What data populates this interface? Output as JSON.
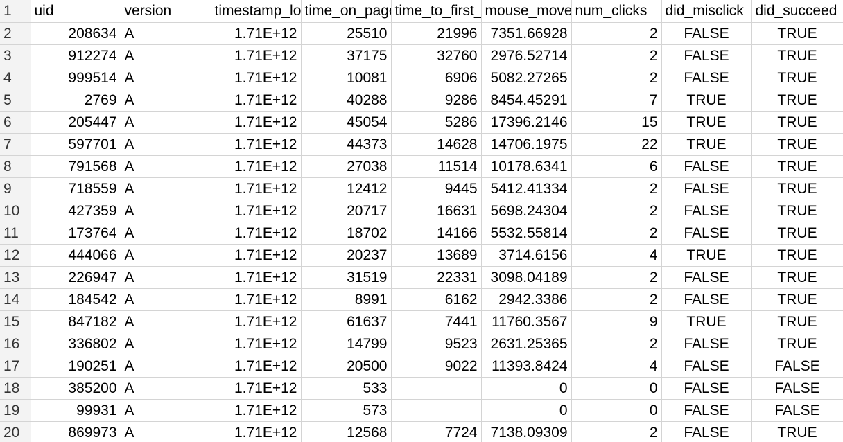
{
  "columns": [
    "uid",
    "version",
    "timestamp_lo",
    "time_on_page",
    "time_to_first_",
    "mouse_moves",
    "num_clicks",
    "did_misclick",
    "did_succeed"
  ],
  "header_row_number": "1",
  "rows": [
    {
      "n": "2",
      "cells": [
        "208634",
        "A",
        "1.71E+12",
        "25510",
        "21996",
        "7351.66928",
        "2",
        "FALSE",
        "TRUE"
      ]
    },
    {
      "n": "3",
      "cells": [
        "912274",
        "A",
        "1.71E+12",
        "37175",
        "32760",
        "2976.52714",
        "2",
        "FALSE",
        "TRUE"
      ]
    },
    {
      "n": "4",
      "cells": [
        "999514",
        "A",
        "1.71E+12",
        "10081",
        "6906",
        "5082.27265",
        "2",
        "FALSE",
        "TRUE"
      ]
    },
    {
      "n": "5",
      "cells": [
        "2769",
        "A",
        "1.71E+12",
        "40288",
        "9286",
        "8454.45291",
        "7",
        "TRUE",
        "TRUE"
      ]
    },
    {
      "n": "6",
      "cells": [
        "205447",
        "A",
        "1.71E+12",
        "45054",
        "5286",
        "17396.2146",
        "15",
        "TRUE",
        "TRUE"
      ]
    },
    {
      "n": "7",
      "cells": [
        "597701",
        "A",
        "1.71E+12",
        "44373",
        "14628",
        "14706.1975",
        "22",
        "TRUE",
        "TRUE"
      ]
    },
    {
      "n": "8",
      "cells": [
        "791568",
        "A",
        "1.71E+12",
        "27038",
        "11514",
        "10178.6341",
        "6",
        "FALSE",
        "TRUE"
      ]
    },
    {
      "n": "9",
      "cells": [
        "718559",
        "A",
        "1.71E+12",
        "12412",
        "9445",
        "5412.41334",
        "2",
        "FALSE",
        "TRUE"
      ]
    },
    {
      "n": "10",
      "cells": [
        "427359",
        "A",
        "1.71E+12",
        "20717",
        "16631",
        "5698.24304",
        "2",
        "FALSE",
        "TRUE"
      ]
    },
    {
      "n": "11",
      "cells": [
        "173764",
        "A",
        "1.71E+12",
        "18702",
        "14166",
        "5532.55814",
        "2",
        "FALSE",
        "TRUE"
      ]
    },
    {
      "n": "12",
      "cells": [
        "444066",
        "A",
        "1.71E+12",
        "20237",
        "13689",
        "3714.6156",
        "4",
        "TRUE",
        "TRUE"
      ]
    },
    {
      "n": "13",
      "cells": [
        "226947",
        "A",
        "1.71E+12",
        "31519",
        "22331",
        "3098.04189",
        "2",
        "FALSE",
        "TRUE"
      ]
    },
    {
      "n": "14",
      "cells": [
        "184542",
        "A",
        "1.71E+12",
        "8991",
        "6162",
        "2942.3386",
        "2",
        "FALSE",
        "TRUE"
      ]
    },
    {
      "n": "15",
      "cells": [
        "847182",
        "A",
        "1.71E+12",
        "61637",
        "7441",
        "11760.3567",
        "9",
        "TRUE",
        "TRUE"
      ]
    },
    {
      "n": "16",
      "cells": [
        "336802",
        "A",
        "1.71E+12",
        "14799",
        "9523",
        "2631.25365",
        "2",
        "FALSE",
        "TRUE"
      ]
    },
    {
      "n": "17",
      "cells": [
        "190251",
        "A",
        "1.71E+12",
        "20500",
        "9022",
        "11393.8424",
        "4",
        "FALSE",
        "FALSE"
      ]
    },
    {
      "n": "18",
      "cells": [
        "385200",
        "A",
        "1.71E+12",
        "533",
        "",
        "0",
        "0",
        "FALSE",
        "FALSE"
      ]
    },
    {
      "n": "19",
      "cells": [
        "99931",
        "A",
        "1.71E+12",
        "573",
        "",
        "0",
        "0",
        "FALSE",
        "FALSE"
      ]
    },
    {
      "n": "20",
      "cells": [
        "869973",
        "A",
        "1.71E+12",
        "12568",
        "7724",
        "7138.09309",
        "2",
        "FALSE",
        "TRUE"
      ]
    }
  ]
}
